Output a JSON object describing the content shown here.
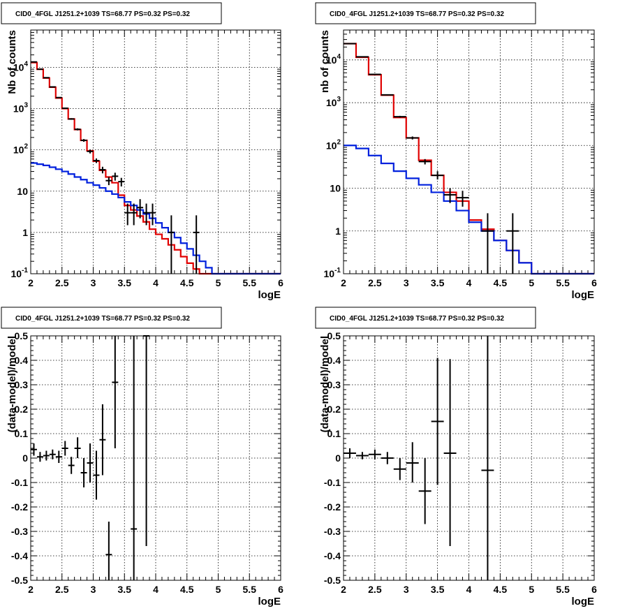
{
  "colors": {
    "data": "#000000",
    "total_model": "#e00000",
    "background_model": "#0020dd",
    "grid": "#000000"
  },
  "chart_data": [
    {
      "type": "line",
      "title": "CID0_4FGL J1251.2+1039 TS=68.77 PS=0.32 PS=0.32",
      "xlabel": "logE",
      "ylabel": "Nb of counts",
      "xlim": [
        2,
        6
      ],
      "ylim": [
        0.1,
        80000
      ],
      "yscale": "log",
      "grid": true,
      "xticks": [
        "2",
        "2.5",
        "3",
        "3.5",
        "4",
        "4.5",
        "5",
        "5.5",
        "6"
      ],
      "yticks": [
        {
          "v": 0.1,
          "t": "10^-1"
        },
        {
          "v": 1,
          "t": "1"
        },
        {
          "v": 10,
          "t": "10"
        },
        {
          "v": 100,
          "t": "10^2"
        },
        {
          "v": 1000,
          "t": "10^3"
        },
        {
          "v": 10000,
          "t": "10^4"
        }
      ],
      "bin_edges": [
        2.0,
        2.1,
        2.2,
        2.3,
        2.4,
        2.5,
        2.6,
        2.7,
        2.8,
        2.9,
        3.0,
        3.1,
        3.2,
        3.3,
        3.4,
        3.5,
        3.6,
        3.7,
        3.8,
        3.9,
        4.0,
        4.1,
        4.2,
        4.3,
        4.4,
        4.5,
        4.6,
        4.7,
        4.8,
        4.9,
        5.0,
        5.1,
        5.2,
        5.3,
        5.4,
        5.5,
        5.6,
        5.7,
        5.8,
        5.9,
        6.0
      ],
      "series": [
        {
          "role": "total_model",
          "values": [
            13000,
            9000,
            5500,
            3300,
            1800,
            1000,
            560,
            310,
            170,
            95,
            53,
            32,
            22,
            16,
            8,
            4.5,
            3.5,
            2.5,
            1.8,
            1.2,
            0.9,
            0.7,
            0.5,
            0.38,
            0.26,
            0.18,
            0.13,
            0.1,
            0.1,
            0.1,
            0.1,
            0.1,
            0.1,
            0.1,
            0.1,
            0.1,
            0.1,
            0.1,
            0.1,
            0.1
          ]
        },
        {
          "role": "background_model",
          "values": [
            48,
            45,
            42,
            38,
            34,
            30,
            26,
            22,
            19,
            16,
            14,
            12,
            10,
            8.5,
            7,
            5.5,
            4.5,
            3.5,
            2.8,
            2.2,
            1.7,
            1.3,
            1.0,
            0.75,
            0.55,
            0.4,
            0.28,
            0.2,
            0.14,
            0.1,
            0.1,
            0.1,
            0.1,
            0.1,
            0.1,
            0.1,
            0.1,
            0.1,
            0.1,
            0.1
          ]
        },
        {
          "role": "data",
          "x": [
            2.05,
            2.15,
            2.25,
            2.35,
            2.45,
            2.55,
            2.65,
            2.75,
            2.85,
            2.95,
            3.05,
            3.15,
            3.25,
            3.35,
            3.45,
            3.55,
            3.65,
            3.75,
            3.85,
            3.95,
            4.25,
            4.65
          ],
          "y": [
            13500,
            9000,
            5600,
            3350,
            1850,
            1020,
            560,
            315,
            170,
            92,
            55,
            33,
            18,
            23,
            17,
            3,
            3,
            4,
            3,
            3,
            1,
            1
          ],
          "lo": [
            13384,
            8905,
            5525,
            3292,
            1807,
            988,
            536,
            297,
            157,
            82,
            48,
            27,
            14,
            18,
            13,
            1.5,
            1.5,
            2.2,
            1.5,
            1.5,
            0.1,
            0.1
          ],
          "hi": [
            13616,
            9095,
            5675,
            3408,
            1893,
            1052,
            584,
            333,
            183,
            102,
            62,
            39,
            22,
            28,
            21,
            5,
            5,
            6.4,
            5,
            5,
            2.6,
            2.6
          ]
        }
      ]
    },
    {
      "type": "line",
      "title": "CID0_4FGL J1251.2+1039 TS=68.77 PS=0.32 PS=0.32",
      "xlabel": "logE",
      "ylabel": "nb of counts",
      "xlim": [
        2,
        6
      ],
      "ylim": [
        0.1,
        50000
      ],
      "yscale": "log",
      "grid": true,
      "xticks": [
        "2",
        "2.5",
        "3",
        "3.5",
        "4",
        "4.5",
        "5",
        "5.5",
        "6"
      ],
      "yticks": [
        {
          "v": 0.1,
          "t": "10^-1"
        },
        {
          "v": 1,
          "t": "1"
        },
        {
          "v": 10,
          "t": "10"
        },
        {
          "v": 100,
          "t": "10^2"
        },
        {
          "v": 1000,
          "t": "10^3"
        },
        {
          "v": 10000,
          "t": "10^4"
        }
      ],
      "bin_edges": [
        2.0,
        2.2,
        2.4,
        2.6,
        2.8,
        3.0,
        3.2,
        3.4,
        3.6,
        3.8,
        4.0,
        4.2,
        4.4,
        4.6,
        4.8,
        5.0,
        5.2,
        5.4,
        5.6,
        5.8,
        6.0
      ],
      "series": [
        {
          "role": "total_model",
          "values": [
            24000,
            11500,
            4500,
            1500,
            450,
            150,
            45,
            20,
            8,
            5,
            1.8,
            1.1,
            0.6,
            0.35,
            0.18,
            0.1,
            0.1,
            0.1,
            0.1,
            0.1
          ]
        },
        {
          "role": "background_model",
          "values": [
            100,
            85,
            58,
            38,
            25,
            17,
            12,
            8,
            5,
            3,
            1.6,
            1.0,
            0.6,
            0.35,
            0.18,
            0.1,
            0.1,
            0.1,
            0.1,
            0.1
          ]
        },
        {
          "role": "data",
          "x": [
            2.1,
            2.3,
            2.5,
            2.7,
            2.9,
            3.1,
            3.3,
            3.5,
            3.7,
            3.9,
            4.3,
            4.7
          ],
          "y": [
            24000,
            11800,
            4600,
            1520,
            470,
            150,
            42,
            20,
            7,
            6,
            1,
            1
          ],
          "lo": [
            23845,
            11691,
            4532,
            1481,
            448,
            138,
            36,
            16,
            4.5,
            3.7,
            0.1,
            0.1
          ],
          "hi": [
            24155,
            11909,
            4668,
            1559,
            492,
            162,
            48,
            25,
            10,
            8.7,
            2.6,
            2.6
          ]
        }
      ]
    },
    {
      "type": "scatter",
      "title": "CID0_4FGL J1251.2+1039 TS=68.77 PS=0.32 PS=0.32",
      "xlabel": "logE",
      "ylabel": "(data-model)/model",
      "xlim": [
        2,
        6
      ],
      "ylim": [
        -0.5,
        0.5
      ],
      "yscale": "linear",
      "grid": true,
      "xticks": [
        "2",
        "2.5",
        "3",
        "3.5",
        "4",
        "4.5",
        "5",
        "5.5",
        "6"
      ],
      "yticks": [
        {
          "v": -0.5,
          "t": "-0.5"
        },
        {
          "v": -0.4,
          "t": "-0.4"
        },
        {
          "v": -0.3,
          "t": "-0.3"
        },
        {
          "v": -0.2,
          "t": "-0.2"
        },
        {
          "v": -0.1,
          "t": "-0.1"
        },
        {
          "v": 0,
          "t": "0"
        },
        {
          "v": 0.1,
          "t": "0.1"
        },
        {
          "v": 0.2,
          "t": "0.2"
        },
        {
          "v": 0.3,
          "t": "0.3"
        },
        {
          "v": 0.4,
          "t": "0.4"
        },
        {
          "v": 0.5,
          "t": "0.5"
        }
      ],
      "series": [
        {
          "role": "data",
          "xhalf": 0.05,
          "x": [
            2.05,
            2.15,
            2.25,
            2.35,
            2.45,
            2.55,
            2.65,
            2.75,
            2.85,
            2.95,
            3.05,
            3.15,
            3.25,
            3.35,
            3.65,
            3.85
          ],
          "y": [
            0.035,
            0.005,
            0.01,
            0.015,
            0.005,
            0.04,
            -0.03,
            0.04,
            -0.06,
            -0.02,
            -0.07,
            0.075,
            -0.395,
            0.31,
            -0.29,
            0.5
          ],
          "lo": [
            0.01,
            -0.015,
            -0.01,
            -0.005,
            -0.02,
            0.01,
            -0.065,
            0.0,
            -0.12,
            -0.1,
            -0.17,
            -0.07,
            -0.5,
            0.04,
            -0.5,
            -0.36
          ],
          "hi": [
            0.06,
            0.025,
            0.03,
            0.035,
            0.03,
            0.07,
            0.005,
            0.085,
            0.0,
            0.06,
            0.03,
            0.22,
            -0.26,
            0.5,
            0.5,
            0.5
          ]
        }
      ]
    },
    {
      "type": "scatter",
      "title": "CID0_4FGL J1251.2+1039 TS=68.77 PS=0.32 PS=0.32",
      "xlabel": "logE",
      "ylabel": "(data-model)/model",
      "xlim": [
        2,
        6
      ],
      "ylim": [
        -0.5,
        0.5
      ],
      "yscale": "linear",
      "grid": true,
      "xticks": [
        "2",
        "2.5",
        "3",
        "3.5",
        "4",
        "4.5",
        "5",
        "5.5",
        "6"
      ],
      "yticks": [
        {
          "v": -0.5,
          "t": "-0.5"
        },
        {
          "v": -0.4,
          "t": "-0.4"
        },
        {
          "v": -0.3,
          "t": "-0.3"
        },
        {
          "v": -0.2,
          "t": "-0.2"
        },
        {
          "v": -0.1,
          "t": "-0.1"
        },
        {
          "v": 0,
          "t": "0"
        },
        {
          "v": 0.1,
          "t": "0.1"
        },
        {
          "v": 0.2,
          "t": "0.2"
        },
        {
          "v": 0.3,
          "t": "0.3"
        },
        {
          "v": 0.4,
          "t": "0.4"
        },
        {
          "v": 0.5,
          "t": "0.5"
        }
      ],
      "series": [
        {
          "role": "data",
          "xhalf": 0.1,
          "x": [
            2.1,
            2.3,
            2.5,
            2.7,
            2.9,
            3.1,
            3.3,
            3.5,
            3.7,
            4.3
          ],
          "y": [
            0.02,
            0.01,
            0.015,
            0.0,
            -0.045,
            -0.02,
            -0.135,
            0.15,
            0.02,
            -0.05
          ],
          "lo": [
            0.0,
            -0.005,
            -0.005,
            -0.025,
            -0.09,
            -0.1,
            -0.27,
            -0.11,
            -0.36,
            -0.5
          ],
          "hi": [
            0.04,
            0.025,
            0.035,
            0.025,
            0.0,
            0.065,
            0.0,
            0.41,
            0.405,
            0.5
          ]
        }
      ]
    }
  ]
}
